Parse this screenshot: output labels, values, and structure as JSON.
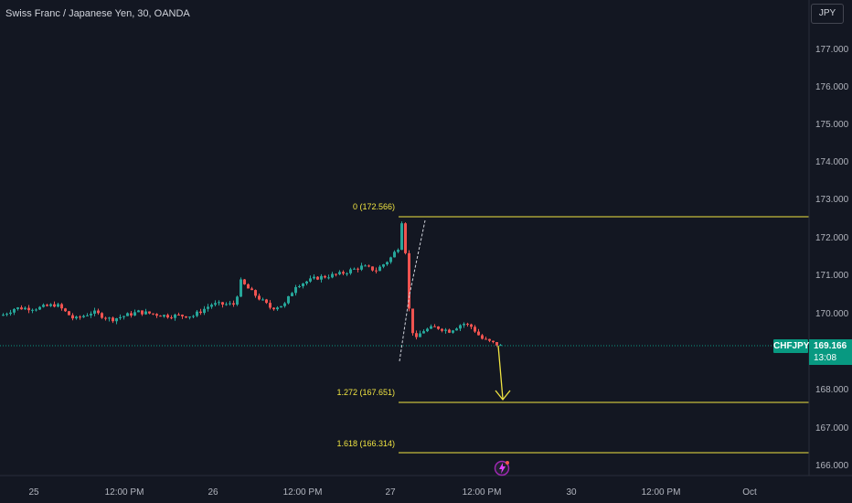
{
  "header": {
    "title": "Swiss Franc / Japanese Yen, 30, OANDA",
    "currency": "JPY"
  },
  "price_axis": {
    "labels": [
      "177.000",
      "176.000",
      "175.000",
      "174.000",
      "173.000",
      "172.000",
      "171.000",
      "170.000",
      "168.000",
      "167.000",
      "166.000"
    ]
  },
  "time_axis": {
    "labels": [
      "25",
      "12:00 PM",
      "26",
      "12:00 PM",
      "27",
      "12:00 PM",
      "30",
      "12:00 PM",
      "Oct"
    ]
  },
  "current_price": {
    "symbol": "CHFJPY",
    "price": "169.166",
    "countdown": "13:08"
  },
  "fib_levels": [
    {
      "label": "0 (172.566)",
      "price": 172.566
    },
    {
      "label": "1.272 (167.651)",
      "price": 167.651
    },
    {
      "label": "1.618 (166.314)",
      "price": 166.314
    }
  ],
  "colors": {
    "background": "#131722",
    "up": "#26a69a",
    "down": "#ef5350",
    "fib": "#f0e442",
    "axis_text": "#b2b5be",
    "price_tag": "#089981",
    "event_icon": "#9c27b0"
  },
  "icons": {
    "event": "lightning-icon"
  }
}
